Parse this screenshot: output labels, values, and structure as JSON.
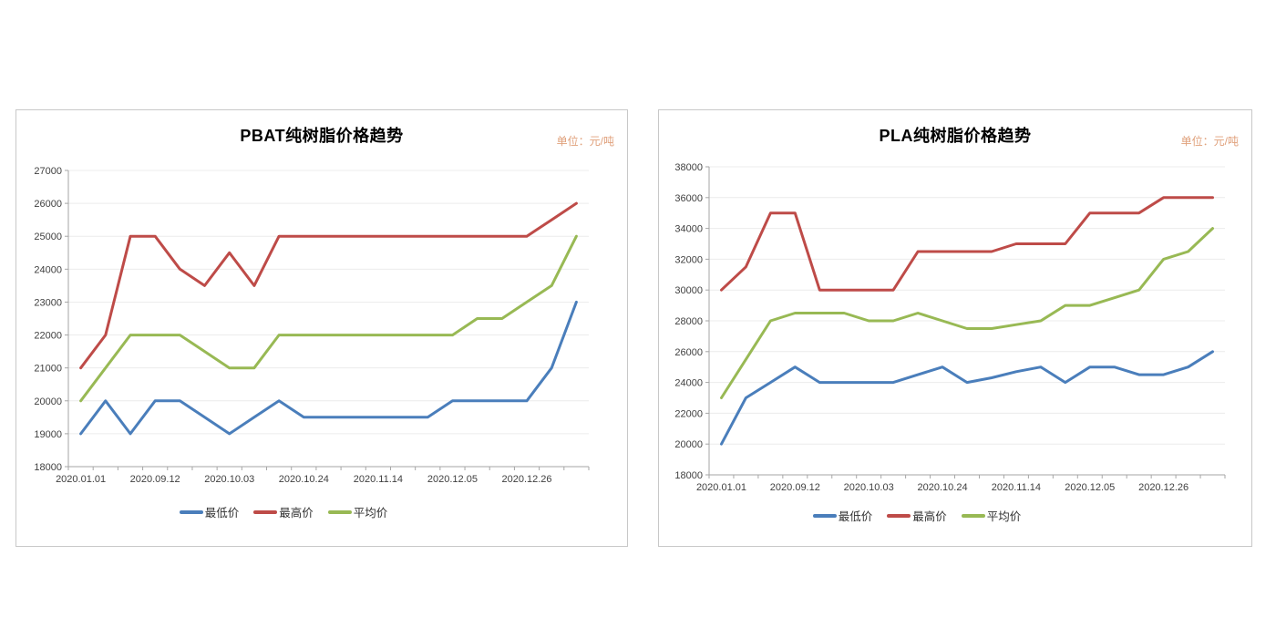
{
  "page": {
    "background": "#ffffff",
    "colors": {
      "grid": "#ececec",
      "axis": "#a6a6a6",
      "tick_text": "#404040",
      "unit_text": "#e0a17c",
      "min_line": "#4A7EBB",
      "max_line": "#BE4B48",
      "avg_line": "#98B954"
    }
  },
  "chart_data": [
    {
      "type": "line",
      "title": "PBAT纯树脂价格趋势",
      "unit_label": "单位：元/吨",
      "xlabel": "",
      "ylabel": "",
      "ylim": [
        18000,
        27000
      ],
      "y_step": 1000,
      "grid": true,
      "legend_position": "bottom",
      "n_points": 21,
      "x_labels": [
        "2020.01.01",
        "2020.09.12",
        "2020.10.03",
        "2020.10.24",
        "2020.11.14",
        "2020.12.05",
        "2020.12.26"
      ],
      "x_label_interval": 3,
      "series": [
        {
          "name": "最低价",
          "color": "#4A7EBB",
          "values": [
            19000,
            20000,
            19000,
            20000,
            20000,
            19500,
            19000,
            19500,
            20000,
            19500,
            19500,
            19500,
            19500,
            19500,
            19500,
            20000,
            20000,
            20000,
            20000,
            21000,
            23000
          ]
        },
        {
          "name": "最高价",
          "color": "#BE4B48",
          "values": [
            21000,
            22000,
            25000,
            25000,
            24000,
            23500,
            24500,
            23500,
            25000,
            25000,
            25000,
            25000,
            25000,
            25000,
            25000,
            25000,
            25000,
            25000,
            25000,
            25500,
            26000
          ]
        },
        {
          "name": "平均价",
          "color": "#98B954",
          "values": [
            20000,
            21000,
            22000,
            22000,
            22000,
            21500,
            21000,
            21000,
            22000,
            22000,
            22000,
            22000,
            22000,
            22000,
            22000,
            22000,
            22500,
            22500,
            23000,
            23500,
            25000
          ]
        }
      ]
    },
    {
      "type": "line",
      "title": "PLA纯树脂价格趋势",
      "unit_label": "单位：元/吨",
      "xlabel": "",
      "ylabel": "",
      "ylim": [
        18000,
        38000
      ],
      "y_step": 2000,
      "grid": true,
      "legend_position": "bottom",
      "n_points": 21,
      "x_labels": [
        "2020.01.01",
        "2020.09.12",
        "2020.10.03",
        "2020.10.24",
        "2020.11.14",
        "2020.12.05",
        "2020.12.26"
      ],
      "x_label_interval": 3,
      "series": [
        {
          "name": "最低价",
          "color": "#4A7EBB",
          "values": [
            20000,
            23000,
            24000,
            25000,
            24000,
            24000,
            24000,
            24000,
            24500,
            25000,
            24000,
            24300,
            24700,
            25000,
            24000,
            25000,
            25000,
            24500,
            24500,
            25000,
            26000
          ]
        },
        {
          "name": "最高价",
          "color": "#BE4B48",
          "values": [
            30000,
            31500,
            35000,
            35000,
            30000,
            30000,
            30000,
            30000,
            32500,
            32500,
            32500,
            32500,
            33000,
            33000,
            33000,
            35000,
            35000,
            35000,
            36000,
            36000,
            36000
          ]
        },
        {
          "name": "平均价",
          "color": "#98B954",
          "values": [
            23000,
            25500,
            28000,
            28500,
            28500,
            28500,
            28000,
            28000,
            28500,
            28000,
            27500,
            27500,
            27750,
            28000,
            29000,
            29000,
            29500,
            30000,
            32000,
            32500,
            34000
          ]
        }
      ]
    }
  ]
}
